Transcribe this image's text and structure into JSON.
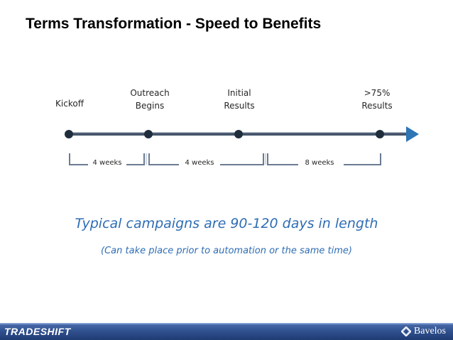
{
  "title": "Terms Transformation - Speed to Benefits",
  "timeline": {
    "milestones": [
      {
        "label": "Kickoff"
      },
      {
        "label": "Outreach\nBegins"
      },
      {
        "label": "Initial\nResults"
      },
      {
        "label": ">75%\nResults"
      }
    ],
    "intervals": [
      {
        "label": "4 weeks"
      },
      {
        "label": "4 weeks"
      },
      {
        "label": "8 weeks"
      }
    ]
  },
  "headline": "Typical campaigns are 90-120 days in length",
  "subline": "(Can take place prior to automation or the same time)",
  "footer": {
    "left_brand": "TRADESHIFT",
    "right_brand": "Bavelos"
  },
  "colors": {
    "headline": "#2e6db4",
    "subline": "#2e6db4",
    "timeline_line": "#44546a",
    "arrow": "#2e75b6",
    "milestone_dot": "#1f2d3d",
    "bracket": "#7f8fa6",
    "footer": "#2f4f8d"
  }
}
